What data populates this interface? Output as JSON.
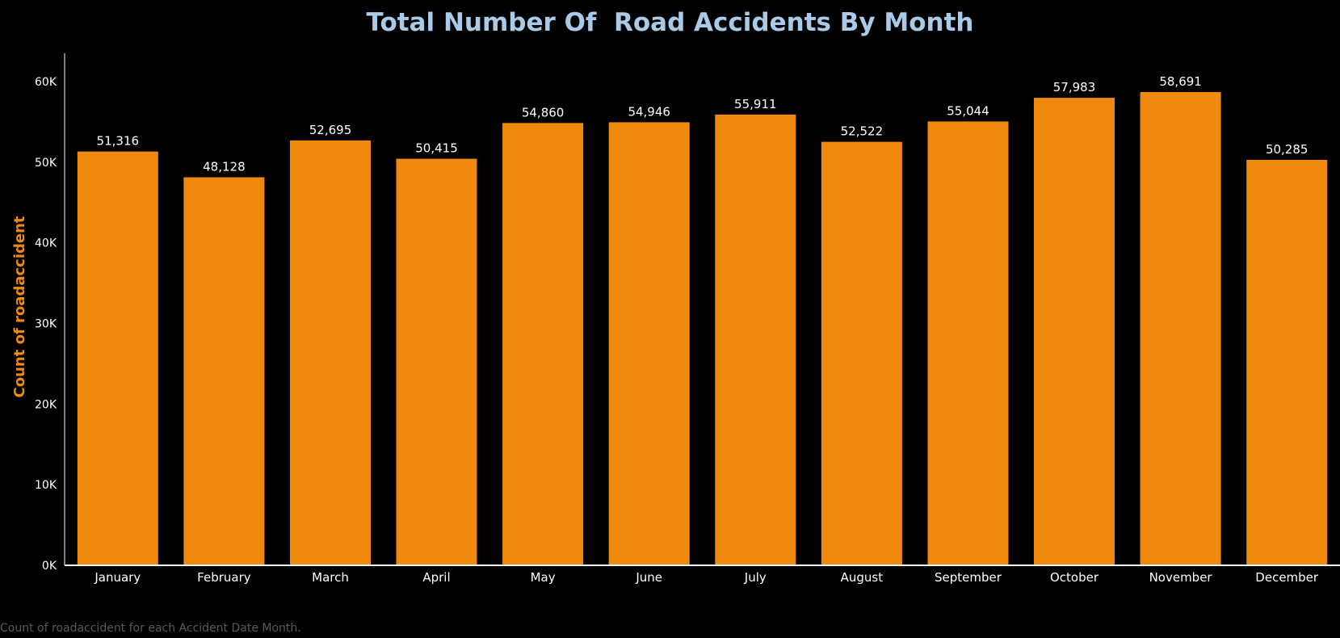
{
  "colors": {
    "background": "#000000",
    "title": "#a9cbe8",
    "bar": "#f08a0e",
    "axis_title": "#f08a0e",
    "text": "#ffffff",
    "caption": "#5a5a5a",
    "axis_line": "#ffffff"
  },
  "caption": "Count of roadaccident for each Accident Date Month.",
  "chart_data": {
    "type": "bar",
    "title": "Total Number Of  Road Accidents By Month",
    "xlabel": "",
    "ylabel": "Count of roadaccident",
    "categories": [
      "January",
      "February",
      "March",
      "April",
      "May",
      "June",
      "July",
      "August",
      "September",
      "October",
      "November",
      "December"
    ],
    "values": [
      51316,
      48128,
      52695,
      50415,
      54860,
      54946,
      55911,
      52522,
      55044,
      57983,
      58691,
      50285
    ],
    "data_labels": [
      "51,316",
      "48,128",
      "52,695",
      "50,415",
      "54,860",
      "54,946",
      "55,911",
      "52,522",
      "55,044",
      "57,983",
      "58,691",
      "50,285"
    ],
    "ylim": [
      0,
      63500
    ],
    "yticks": [
      0,
      10000,
      20000,
      30000,
      40000,
      50000,
      60000
    ],
    "ytick_labels": [
      "0K",
      "10K",
      "20K",
      "30K",
      "40K",
      "50K",
      "60K"
    ],
    "grid": false,
    "legend": "none"
  }
}
